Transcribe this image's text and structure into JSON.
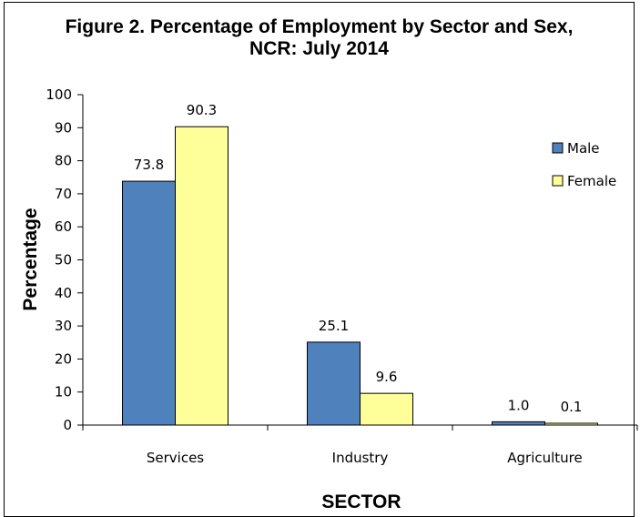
{
  "chart_data": {
    "type": "bar",
    "title": "Figure 2. Percentage of Employment by Sector and Sex,",
    "subtitle": "NCR: July 2014",
    "xlabel": "SECTOR",
    "ylabel": "Percentage",
    "categories": [
      "Services",
      "Industry",
      "Agriculture"
    ],
    "series": [
      {
        "name": "Male",
        "values": [
          73.8,
          25.1,
          1.0
        ],
        "labels": [
          "73.8",
          "25.1",
          "1.0"
        ],
        "color": "#4f81bd"
      },
      {
        "name": "Female",
        "values": [
          90.3,
          9.6,
          0.1
        ],
        "labels": [
          "90.3",
          "9.6",
          "0.1"
        ],
        "color": "#ffff99"
      }
    ],
    "ylim": [
      0,
      100
    ],
    "yticks": [
      0,
      10,
      20,
      30,
      40,
      50,
      60,
      70,
      80,
      90,
      100
    ],
    "grid": false,
    "legend": "right"
  }
}
